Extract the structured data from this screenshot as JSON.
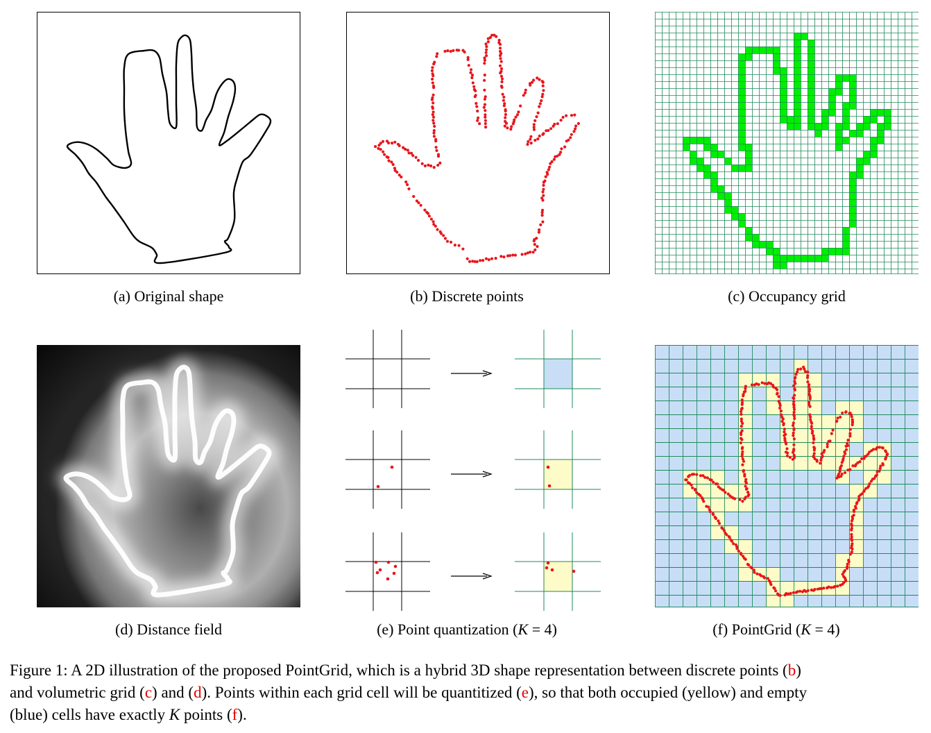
{
  "captions": {
    "a": "(a) Original shape",
    "b": "(b) Discrete points",
    "c": "(c) Occupancy grid",
    "d": "(d) Distance field",
    "e_prefix": "(e) Point quantization (",
    "e_var": "K",
    "e_suffix": " = 4)",
    "f_prefix": "(f) PointGrid (",
    "f_var": "K",
    "f_suffix": " = 4)"
  },
  "figure_caption": {
    "p1": "Figure 1: A 2D illustration of the proposed PointGrid, which is a hybrid 3D shape representation between discrete points (",
    "ref_b": "b",
    "p2": ")",
    "p3": "and volumetric grid (",
    "ref_c": "c",
    "p4": ") and (",
    "ref_d": "d",
    "p5": "). Points within each grid cell will be quantitized (",
    "ref_e": "e",
    "p6": "), so that both occupied (yellow) and empty",
    "p7": "(blue) cells have exactly ",
    "var_k": "K",
    "p8": " points (",
    "ref_f": "f",
    "p9": ")."
  },
  "colors": {
    "points": "#e8161b",
    "occupied_green": "#00ee00",
    "grid_line": "#1e8a5a",
    "empty_blue": "#c8def7",
    "occupied_yellow": "#fdfbc8",
    "ref_red": "#e00000"
  }
}
